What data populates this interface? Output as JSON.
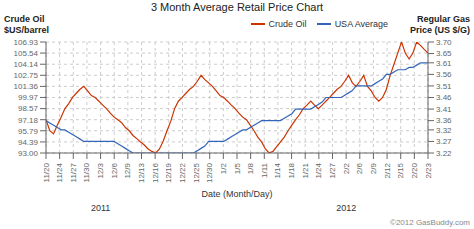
{
  "chart_data": {
    "type": "line",
    "title": "3 Month Average Retail Price Chart",
    "ylabel": "Crude Oil\n$US/barrel",
    "y2label": "Regular Gas\nPrice (US $/G)",
    "xlabel": "Date (Month/Day)",
    "x": [
      0,
      1,
      2,
      3,
      4,
      5,
      6,
      7,
      8,
      9,
      10,
      11,
      12,
      13,
      14,
      15,
      16,
      17,
      18,
      19,
      20,
      21,
      22,
      23,
      24,
      25,
      26,
      27,
      28,
      29,
      30,
      31,
      32,
      33,
      34,
      35,
      36,
      37,
      38,
      39,
      40,
      41,
      42,
      43,
      44,
      45,
      46,
      47,
      48,
      49,
      50,
      51,
      52,
      53,
      54,
      55,
      56,
      57,
      58,
      59,
      60,
      61,
      62,
      63,
      64,
      65,
      66,
      67,
      68,
      69,
      70,
      71,
      72,
      73,
      74,
      75,
      76,
      77,
      78,
      79,
      80,
      81,
      82,
      83,
      84,
      85,
      86,
      87,
      88,
      89,
      90,
      91,
      92,
      93,
      94,
      95,
      96,
      97,
      98,
      99,
      100,
      101
    ],
    "xlim": [
      0,
      101
    ],
    "xticks": [
      {
        "value": 0,
        "label": "11/20"
      },
      {
        "value": 3.607142857,
        "label": "11/24"
      },
      {
        "value": 7.214285714,
        "label": "11/27"
      },
      {
        "value": 10.821428571,
        "label": "11/30"
      },
      {
        "value": 14.428571429,
        "label": "12/3"
      },
      {
        "value": 18.035714286,
        "label": "12/6"
      },
      {
        "value": 21.642857143,
        "label": "12/9"
      },
      {
        "value": 25.25,
        "label": "12/13"
      },
      {
        "value": 28.857142857,
        "label": "12/16"
      },
      {
        "value": 32.464285714,
        "label": "12/19"
      },
      {
        "value": 36.071428571,
        "label": "12/22"
      },
      {
        "value": 39.678571429,
        "label": "12/25"
      },
      {
        "value": 43.285714286,
        "label": "12/30"
      },
      {
        "value": 46.892857143,
        "label": "1/2"
      },
      {
        "value": 50.5,
        "label": "1/5"
      },
      {
        "value": 54.107142857,
        "label": "1/8"
      },
      {
        "value": 57.714285714,
        "label": "1/11"
      },
      {
        "value": 61.321428571,
        "label": "1/14"
      },
      {
        "value": 64.928571429,
        "label": "1/18"
      },
      {
        "value": 68.535714286,
        "label": "1/21"
      },
      {
        "value": 72.142857143,
        "label": "1/24"
      },
      {
        "value": 75.75,
        "label": "1/27"
      },
      {
        "value": 79.357142857,
        "label": "2/2"
      },
      {
        "value": 82.964285714,
        "label": "2/6"
      },
      {
        "value": 86.571428571,
        "label": "2/9"
      },
      {
        "value": 90.178571429,
        "label": "2/12"
      },
      {
        "value": 93.785714286,
        "label": "2/15"
      },
      {
        "value": 97.392857143,
        "label": "2/20"
      },
      {
        "value": 101,
        "label": "2/23"
      }
    ],
    "ylim": [
      93,
      106.93
    ],
    "yticks": [
      {
        "value": 93,
        "label": "93.00"
      },
      94.39,
      95.79,
      97.18,
      98.57,
      99.97,
      101.36,
      102.75,
      104.14,
      105.54,
      106.93
    ],
    "y2lim": [
      3.22,
      3.7
    ],
    "y2ticks": [
      3.22,
      3.27,
      3.32,
      3.36,
      3.41,
      3.46,
      3.51,
      3.56,
      3.61,
      3.65,
      {
        "value": 3.7,
        "label": "3.70"
      }
    ],
    "grid": true,
    "legend": "upper right",
    "annotations": [
      {
        "text": "2011",
        "x": 14.428571429
      },
      {
        "text": "2012",
        "x": 79.357142857
      },
      {
        "text": "©2012 GasBuddy.com"
      }
    ],
    "series": [
      {
        "name": "Crude Oil",
        "color": "#cc3300",
        "values": [
          97.18,
          95.79,
          95.4,
          96.5,
          97.5,
          98.57,
          99.2,
          99.97,
          100.5,
          101.0,
          101.36,
          100.8,
          100.2,
          99.97,
          99.5,
          99.0,
          98.57,
          98.0,
          97.5,
          97.18,
          96.8,
          96.2,
          95.79,
          95.2,
          94.8,
          94.39,
          94.0,
          93.5,
          93.2,
          93.0,
          93.5,
          94.5,
          95.79,
          97.0,
          98.57,
          99.5,
          99.97,
          100.5,
          101.0,
          101.36,
          102.0,
          102.75,
          102.2,
          101.8,
          101.36,
          100.8,
          100.2,
          99.97,
          99.5,
          99.0,
          98.57,
          98.0,
          97.5,
          97.18,
          96.5,
          95.79,
          95.0,
          94.39,
          93.5,
          93.0,
          93.2,
          93.8,
          94.39,
          95.0,
          95.79,
          96.5,
          97.18,
          97.8,
          98.57,
          99.0,
          99.5,
          99.0,
          98.57,
          99.0,
          99.5,
          99.97,
          100.5,
          101.0,
          101.36,
          102.0,
          102.75,
          101.8,
          101.36,
          102.0,
          102.75,
          101.36,
          100.8,
          99.97,
          99.5,
          99.97,
          101.0,
          102.75,
          104.14,
          105.54,
          106.93,
          105.54,
          104.8,
          105.54,
          106.93,
          106.5,
          106.0,
          105.54
        ]
      },
      {
        "name": "USA Average",
        "color": "#3366bb",
        "axis": "y2",
        "values": [
          3.36,
          3.35,
          3.34,
          3.33,
          3.32,
          3.32,
          3.31,
          3.3,
          3.29,
          3.28,
          3.27,
          3.27,
          3.27,
          3.27,
          3.27,
          3.27,
          3.27,
          3.27,
          3.27,
          3.26,
          3.25,
          3.24,
          3.23,
          3.22,
          3.22,
          3.22,
          3.22,
          3.22,
          3.22,
          3.22,
          3.22,
          3.22,
          3.22,
          3.22,
          3.22,
          3.22,
          3.22,
          3.22,
          3.22,
          3.22,
          3.23,
          3.24,
          3.25,
          3.27,
          3.27,
          3.27,
          3.27,
          3.27,
          3.28,
          3.29,
          3.3,
          3.31,
          3.32,
          3.32,
          3.33,
          3.34,
          3.35,
          3.36,
          3.36,
          3.36,
          3.36,
          3.36,
          3.36,
          3.37,
          3.38,
          3.39,
          3.41,
          3.41,
          3.41,
          3.41,
          3.41,
          3.42,
          3.43,
          3.44,
          3.46,
          3.46,
          3.46,
          3.46,
          3.46,
          3.47,
          3.48,
          3.49,
          3.51,
          3.51,
          3.51,
          3.51,
          3.51,
          3.52,
          3.53,
          3.54,
          3.56,
          3.56,
          3.57,
          3.58,
          3.58,
          3.58,
          3.59,
          3.59,
          3.6,
          3.61,
          3.61,
          3.61
        ]
      }
    ]
  }
}
